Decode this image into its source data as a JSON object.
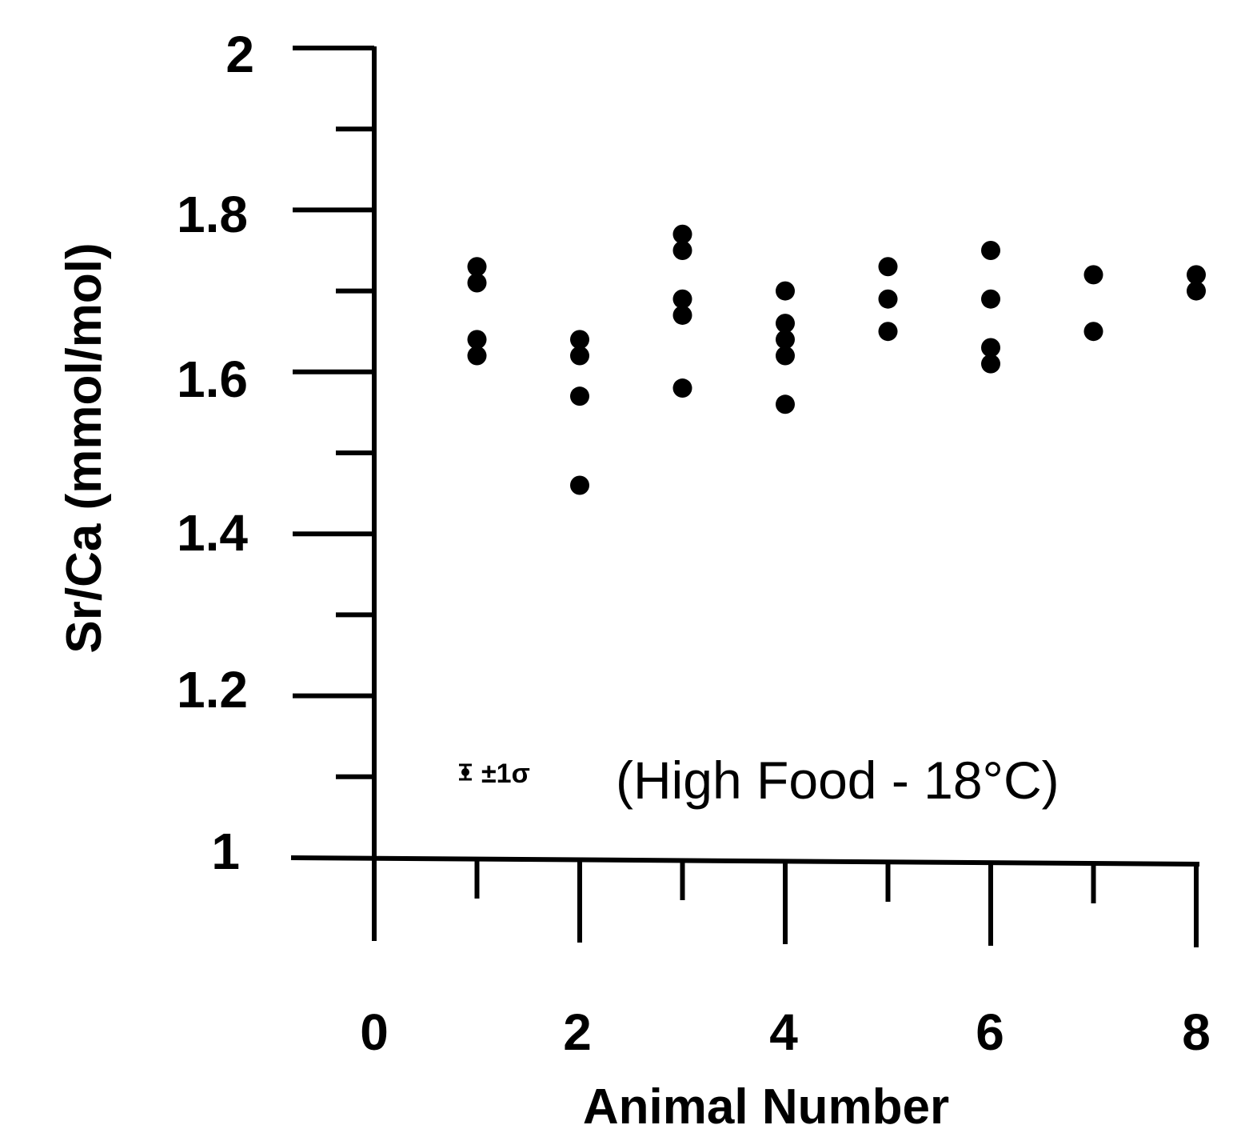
{
  "chart_data": {
    "type": "scatter",
    "title": "",
    "xlabel": "Animal Number",
    "ylabel": "Sr/Ca (mmol/mol)",
    "xlim": [
      0,
      8
    ],
    "ylim": [
      1,
      2
    ],
    "x_ticks": [
      "0",
      "2",
      "4",
      "6",
      "8"
    ],
    "y_ticks": [
      "1",
      "1.2",
      "1.4",
      "1.6",
      "1.8",
      "2"
    ],
    "legend": {
      "symbol_text": "±1σ",
      "text": "(High Food - 18°C)"
    },
    "points": [
      {
        "x": 1,
        "y": 1.73
      },
      {
        "x": 1,
        "y": 1.71
      },
      {
        "x": 1,
        "y": 1.64
      },
      {
        "x": 1,
        "y": 1.62
      },
      {
        "x": 2,
        "y": 1.64
      },
      {
        "x": 2,
        "y": 1.62
      },
      {
        "x": 2,
        "y": 1.57
      },
      {
        "x": 2,
        "y": 1.46
      },
      {
        "x": 3,
        "y": 1.77
      },
      {
        "x": 3,
        "y": 1.75
      },
      {
        "x": 3,
        "y": 1.69
      },
      {
        "x": 3,
        "y": 1.67
      },
      {
        "x": 3,
        "y": 1.58
      },
      {
        "x": 4,
        "y": 1.7
      },
      {
        "x": 4,
        "y": 1.66
      },
      {
        "x": 4,
        "y": 1.64
      },
      {
        "x": 4,
        "y": 1.62
      },
      {
        "x": 4,
        "y": 1.56
      },
      {
        "x": 5,
        "y": 1.73
      },
      {
        "x": 5,
        "y": 1.69
      },
      {
        "x": 5,
        "y": 1.65
      },
      {
        "x": 6,
        "y": 1.75
      },
      {
        "x": 6,
        "y": 1.69
      },
      {
        "x": 6,
        "y": 1.63
      },
      {
        "x": 6,
        "y": 1.61
      },
      {
        "x": 7,
        "y": 1.72
      },
      {
        "x": 7,
        "y": 1.65
      },
      {
        "x": 8,
        "y": 1.72
      },
      {
        "x": 8,
        "y": 1.7
      }
    ]
  }
}
